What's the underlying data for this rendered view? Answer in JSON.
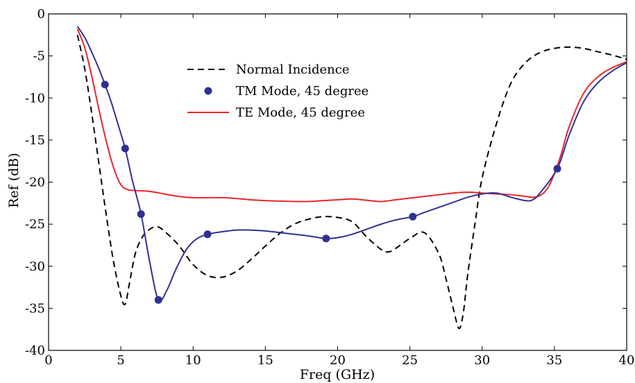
{
  "chart_data": {
    "type": "line",
    "xlabel": "Freq (GHz)",
    "ylabel": "Ref (dB)",
    "xlim": [
      0,
      40
    ],
    "ylim": [
      -40,
      0
    ],
    "xticks": [
      0,
      5,
      10,
      15,
      20,
      25,
      30,
      35,
      40
    ],
    "yticks": [
      0,
      -5,
      -10,
      -15,
      -20,
      -25,
      -30,
      -35,
      -40
    ],
    "grid": false,
    "legend_position": "upper-center",
    "series": [
      {
        "name": "Normal Incidence",
        "color": "#000000",
        "style": "dashed",
        "marker": "none",
        "x": [
          2,
          2.5,
          3,
          3.5,
          4,
          4.5,
          5,
          5.3,
          5.6,
          6,
          6.5,
          7,
          7.5,
          8,
          9,
          10,
          11,
          12,
          13,
          14,
          15,
          16,
          17,
          18,
          19,
          20,
          21,
          22,
          23,
          23.5,
          24,
          25,
          26,
          27,
          27.5,
          28,
          28.4,
          28.7,
          29,
          29.5,
          30,
          31,
          32,
          33,
          34,
          35,
          36,
          37,
          38,
          39,
          40
        ],
        "y": [
          -2.5,
          -6.5,
          -12,
          -18,
          -24,
          -29.5,
          -33.5,
          -34.5,
          -32,
          -28.5,
          -26.5,
          -25.6,
          -25.3,
          -25.8,
          -27.5,
          -29.8,
          -31.1,
          -31.3,
          -30.6,
          -29.2,
          -27.6,
          -26.1,
          -25,
          -24.4,
          -24.1,
          -24.2,
          -24.7,
          -26.5,
          -28,
          -28.3,
          -27.9,
          -26.7,
          -26,
          -28.5,
          -31.5,
          -35,
          -37.4,
          -35.5,
          -31,
          -25,
          -19.5,
          -13,
          -8.2,
          -5.8,
          -4.6,
          -4.1,
          -3.95,
          -4.1,
          -4.5,
          -4.9,
          -5.4
        ]
      },
      {
        "name": "TM Mode, 45 degree",
        "color": "#2E3192",
        "style": "solid",
        "marker": "circle",
        "x": [
          2,
          2.5,
          3,
          3.5,
          3.9,
          4.3,
          4.8,
          5.3,
          5.8,
          6.4,
          7,
          7.6,
          8.2,
          8.8,
          9.5,
          10.2,
          11,
          12,
          13,
          14,
          15,
          16,
          17,
          18,
          19.2,
          20,
          21,
          22,
          23,
          24,
          25.2,
          26,
          27,
          28,
          29,
          30,
          31,
          32,
          33,
          33.5,
          34,
          35.2,
          36,
          37,
          38,
          39,
          40
        ],
        "y": [
          -1.5,
          -2.8,
          -4.6,
          -6.6,
          -8.4,
          -10.3,
          -13.1,
          -16,
          -19.8,
          -23.8,
          -29.5,
          -34,
          -32.8,
          -30.4,
          -28.1,
          -26.8,
          -26.2,
          -25.9,
          -25.7,
          -25.7,
          -25.8,
          -26,
          -26.2,
          -26.4,
          -26.7,
          -26.6,
          -26.2,
          -25.6,
          -25,
          -24.5,
          -24.1,
          -23.6,
          -23,
          -22.4,
          -21.8,
          -21.4,
          -21.3,
          -21.8,
          -22.2,
          -22.1,
          -21.3,
          -18.4,
          -14.5,
          -10.5,
          -8.2,
          -6.8,
          -5.8
        ],
        "markers_x": [
          3.9,
          5.3,
          6.4,
          7.6,
          11,
          19.2,
          25.2,
          35.2
        ],
        "markers_y": [
          -8.4,
          -16,
          -23.8,
          -34,
          -26.2,
          -26.7,
          -24.1,
          -18.4
        ]
      },
      {
        "name": "TE Mode, 45 degree",
        "color": "#E8262A",
        "style": "solid",
        "marker": "none",
        "x": [
          2,
          2.5,
          3,
          3.5,
          4,
          4.5,
          5,
          5.5,
          6,
          7,
          8,
          9,
          10,
          11,
          12,
          13,
          14,
          15,
          16,
          17,
          18,
          19,
          20,
          21,
          22,
          23,
          24,
          25,
          26,
          27,
          28,
          29,
          30,
          31,
          32,
          33,
          33.5,
          34,
          34.5,
          35,
          35.5,
          36,
          37,
          38,
          39,
          40
        ],
        "y": [
          -1.8,
          -4,
          -7.5,
          -11.5,
          -15.2,
          -18.3,
          -20.3,
          -20.9,
          -21,
          -21.1,
          -21.4,
          -21.7,
          -21.85,
          -21.85,
          -21.85,
          -21.95,
          -22.1,
          -22.2,
          -22.25,
          -22.3,
          -22.3,
          -22.2,
          -22.1,
          -22,
          -22.15,
          -22.3,
          -22.1,
          -21.9,
          -21.7,
          -21.5,
          -21.3,
          -21.2,
          -21.3,
          -21.4,
          -21.5,
          -21.7,
          -21.8,
          -21.6,
          -20.8,
          -19,
          -16.5,
          -13.5,
          -9.5,
          -7.5,
          -6.4,
          -5.7
        ]
      }
    ]
  }
}
